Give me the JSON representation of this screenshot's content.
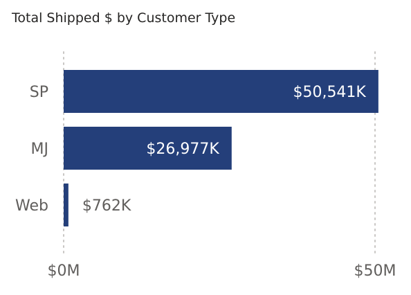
{
  "chart_data": {
    "type": "bar",
    "orientation": "horizontal",
    "title": "Total Shipped $ by Customer Type",
    "categories": [
      "SP",
      "MJ",
      "Web"
    ],
    "values": [
      50541,
      26977,
      762
    ],
    "value_unit": "K",
    "data_labels": [
      "$50,541K",
      "$26,977K",
      "$762K"
    ],
    "xlim": [
      0,
      50000
    ],
    "x_ticks": [
      0,
      50000
    ],
    "x_tick_labels": [
      "$0M",
      "$50M"
    ],
    "xlabel": "",
    "ylabel": "",
    "grid": "vertical dotted",
    "legend": "none",
    "colors": {
      "bar": "#243F7A",
      "label_inside": "#FFFFFF",
      "label_outside": "#605E5C",
      "category_label": "#605E5C",
      "tick_label": "#605E5C",
      "gridline": "#C8C6C4"
    }
  }
}
